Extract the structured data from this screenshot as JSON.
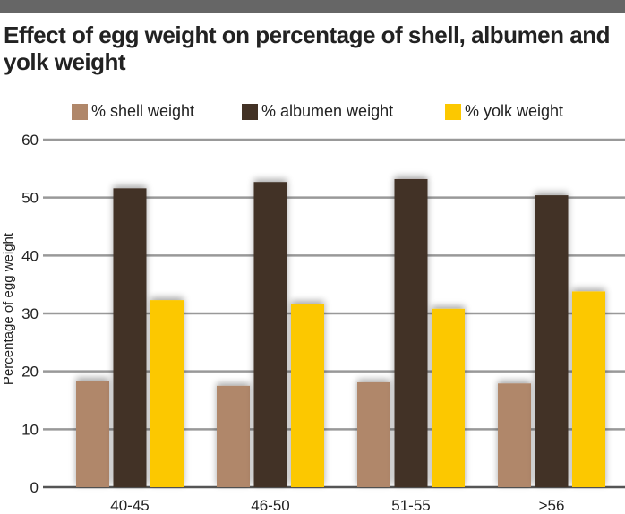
{
  "chart_data": {
    "type": "bar",
    "title": "Effect of egg weight on percentage of shell, albumen and yolk weight",
    "xlabel": "",
    "ylabel": "Percentage of egg weight",
    "ylim": [
      0,
      60
    ],
    "yticks": [
      0,
      10,
      20,
      30,
      40,
      50,
      60
    ],
    "grid": true,
    "legend_position": "top",
    "categories": [
      "40-45",
      "46-50",
      "51-55",
      ">56"
    ],
    "series": [
      {
        "name": "% shell weight",
        "color": "#b0876a",
        "values": [
          18.4,
          17.5,
          18.1,
          17.9
        ]
      },
      {
        "name": "% albumen weight",
        "color": "#433225",
        "values": [
          51.6,
          52.7,
          53.2,
          50.4
        ]
      },
      {
        "name": "% yolk weight",
        "color": "#fcc800",
        "values": [
          32.3,
          31.7,
          30.8,
          33.8
        ]
      }
    ]
  }
}
